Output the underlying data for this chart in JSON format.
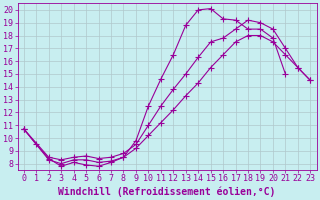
{
  "xlabel": "Windchill (Refroidissement éolien,°C)",
  "background_color": "#c8eef0",
  "line_color": "#990099",
  "grid_color": "#b0c8cc",
  "xlim": [
    -0.5,
    23.5
  ],
  "ylim": [
    7.5,
    20.5
  ],
  "xticks": [
    0,
    1,
    2,
    3,
    4,
    5,
    6,
    7,
    8,
    9,
    10,
    11,
    12,
    13,
    14,
    15,
    16,
    17,
    18,
    19,
    20,
    21,
    22,
    23
  ],
  "yticks": [
    8,
    9,
    10,
    11,
    12,
    13,
    14,
    15,
    16,
    17,
    18,
    19,
    20
  ],
  "line1_x": [
    0,
    1,
    2,
    3,
    4,
    5,
    6,
    7,
    8,
    9,
    10,
    11,
    12,
    13,
    14,
    15,
    16,
    17,
    18,
    19,
    20,
    21
  ],
  "line1_y": [
    10.7,
    9.5,
    8.4,
    7.8,
    8.1,
    7.9,
    7.8,
    8.1,
    8.5,
    9.8,
    12.5,
    14.6,
    16.5,
    18.8,
    20.0,
    20.1,
    19.3,
    19.2,
    18.5,
    18.5,
    17.8,
    15.0
  ],
  "line2_x": [
    0,
    2,
    3,
    4,
    5,
    6,
    7,
    8,
    9,
    10,
    11,
    12,
    13,
    14,
    15,
    16,
    17,
    18,
    19,
    20,
    21,
    22,
    23
  ],
  "line2_y": [
    10.7,
    8.5,
    8.3,
    8.5,
    8.6,
    8.4,
    8.5,
    8.8,
    9.5,
    11.0,
    12.5,
    13.8,
    15.0,
    16.3,
    17.5,
    17.8,
    18.5,
    19.2,
    19.0,
    18.5,
    17.0,
    15.5,
    14.5
  ],
  "line3_x": [
    0,
    2,
    3,
    4,
    5,
    6,
    7,
    8,
    9,
    10,
    11,
    12,
    13,
    14,
    15,
    16,
    17,
    18,
    19,
    20,
    21,
    22,
    23
  ],
  "line3_y": [
    10.7,
    8.3,
    8.0,
    8.3,
    8.3,
    8.1,
    8.2,
    8.5,
    9.2,
    10.2,
    11.2,
    12.2,
    13.3,
    14.3,
    15.5,
    16.5,
    17.5,
    18.0,
    18.0,
    17.5,
    16.5,
    15.5,
    14.5
  ],
  "label_fontsize": 7,
  "tick_fontsize": 6
}
